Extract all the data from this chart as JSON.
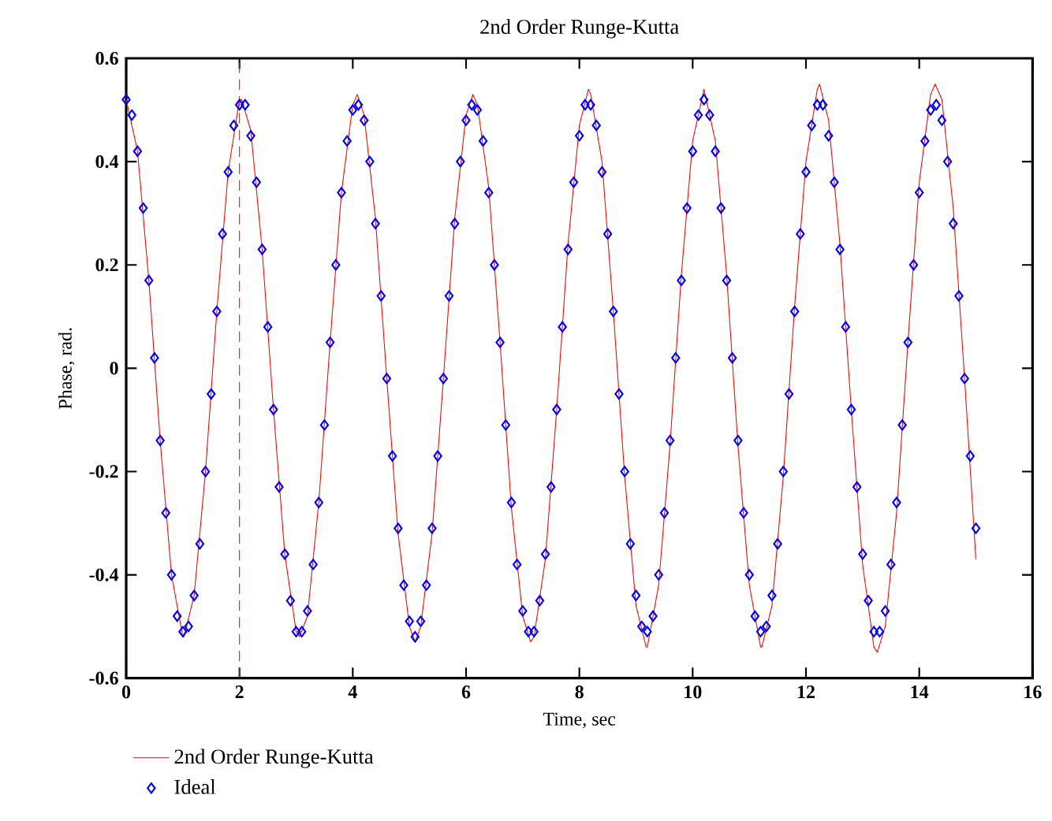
{
  "chart_data": {
    "type": "line",
    "title": "2nd Order Runge-Kutta",
    "xlabel": "Time, sec",
    "ylabel": "Phase, rad.",
    "xlim": [
      0,
      16
    ],
    "xticks": [
      0,
      2,
      4,
      6,
      8,
      10,
      12,
      14,
      16
    ],
    "ylim": [
      -0.6,
      0.6
    ],
    "yticks": [
      -0.6,
      -0.4,
      -0.2,
      0,
      0.2,
      0.4,
      0.6
    ],
    "grid": false,
    "legend": "bottom",
    "ref_lines": [
      {
        "axis": "x",
        "value": 2,
        "color": "#ff0000",
        "line_style": "dashed"
      }
    ],
    "series": [
      {
        "name": "2nd Order Runge-Kutta",
        "color": "#ff0000",
        "marker": "none",
        "line_style": "solid",
        "x": [
          0,
          0.2,
          0.4,
          0.6,
          0.8,
          1.0,
          1.02,
          1.2,
          1.4,
          1.6,
          1.8,
          2.0,
          2.04,
          2.2,
          2.4,
          2.6,
          2.8,
          3.0,
          3.06,
          3.2,
          3.4,
          3.6,
          3.8,
          4.0,
          4.08,
          4.2,
          4.4,
          4.6,
          4.8,
          5.0,
          5.1,
          5.2,
          5.4,
          5.6,
          5.8,
          6.0,
          6.12,
          6.2,
          6.4,
          6.6,
          6.8,
          7.0,
          7.14,
          7.2,
          7.4,
          7.6,
          7.8,
          8.0,
          8.16,
          8.2,
          8.4,
          8.6,
          8.8,
          9.0,
          9.18,
          9.2,
          9.4,
          9.6,
          9.8,
          10.0,
          10.2,
          10.4,
          10.6,
          10.8,
          11.0,
          11.2,
          11.22,
          11.4,
          11.6,
          11.8,
          12.0,
          12.2,
          12.24,
          12.4,
          12.6,
          12.8,
          13.0,
          13.2,
          13.26,
          13.4,
          13.6,
          13.8,
          14.0,
          14.2,
          14.28,
          14.4,
          14.6,
          14.8,
          15.0
        ],
        "values": [
          0.52,
          0.42,
          0.17,
          -0.14,
          -0.4,
          -0.52,
          -0.52,
          -0.44,
          -0.2,
          0.11,
          0.38,
          0.52,
          0.52,
          0.46,
          0.23,
          -0.08,
          -0.36,
          -0.51,
          -0.52,
          -0.48,
          -0.26,
          0.05,
          0.34,
          0.51,
          0.53,
          0.49,
          0.29,
          -0.02,
          -0.32,
          -0.5,
          -0.53,
          -0.5,
          -0.32,
          -0.02,
          0.29,
          0.49,
          0.53,
          0.51,
          0.35,
          0.05,
          -0.27,
          -0.48,
          -0.53,
          -0.52,
          -0.37,
          -0.08,
          0.24,
          0.47,
          0.54,
          0.53,
          0.4,
          0.11,
          -0.21,
          -0.46,
          -0.54,
          -0.54,
          -0.42,
          -0.15,
          0.18,
          0.44,
          0.54,
          0.44,
          0.18,
          -0.15,
          -0.42,
          -0.54,
          -0.54,
          -0.46,
          -0.21,
          0.12,
          0.4,
          0.54,
          0.55,
          0.48,
          0.24,
          -0.08,
          -0.38,
          -0.54,
          -0.55,
          -0.5,
          -0.28,
          0.05,
          0.36,
          0.53,
          0.55,
          0.52,
          0.31,
          -0.02,
          -0.37
        ]
      },
      {
        "name": "Ideal",
        "type": "scatter",
        "color": "#0000ff",
        "marker": "diamond",
        "x": [
          0,
          0.1,
          0.2,
          0.3,
          0.4,
          0.5,
          0.6,
          0.7,
          0.8,
          0.9,
          1.0,
          1.1,
          1.2,
          1.3,
          1.4,
          1.5,
          1.6,
          1.7,
          1.8,
          1.9,
          2.0,
          2.1,
          2.2,
          2.3,
          2.4,
          2.5,
          2.6,
          2.7,
          2.8,
          2.9,
          3.0,
          3.1,
          3.2,
          3.3,
          3.4,
          3.5,
          3.6,
          3.7,
          3.8,
          3.9,
          4.0,
          4.1,
          4.2,
          4.3,
          4.4,
          4.5,
          4.6,
          4.7,
          4.8,
          4.9,
          5.0,
          5.1,
          5.2,
          5.3,
          5.4,
          5.5,
          5.6,
          5.7,
          5.8,
          5.9,
          6.0,
          6.1,
          6.2,
          6.3,
          6.4,
          6.5,
          6.6,
          6.7,
          6.8,
          6.9,
          7.0,
          7.1,
          7.2,
          7.3,
          7.4,
          7.5,
          7.6,
          7.7,
          7.8,
          7.9,
          8.0,
          8.1,
          8.2,
          8.3,
          8.4,
          8.5,
          8.6,
          8.7,
          8.8,
          8.9,
          9.0,
          9.1,
          9.2,
          9.3,
          9.4,
          9.5,
          9.6,
          9.7,
          9.8,
          9.9,
          10.0,
          10.1,
          10.2,
          10.3,
          10.4,
          10.5,
          10.6,
          10.7,
          10.8,
          10.9,
          11.0,
          11.1,
          11.2,
          11.3,
          11.4,
          11.5,
          11.6,
          11.7,
          11.8,
          11.9,
          12.0,
          12.1,
          12.2,
          12.3,
          12.4,
          12.5,
          12.6,
          12.7,
          12.8,
          12.9,
          13.0,
          13.1,
          13.2,
          13.3,
          13.4,
          13.5,
          13.6,
          13.7,
          13.8,
          13.9,
          14.0,
          14.1,
          14.2,
          14.3,
          14.4,
          14.5,
          14.6,
          14.7,
          14.8,
          14.9,
          15.0
        ],
        "values": [
          0.52,
          0.49,
          0.42,
          0.31,
          0.17,
          0.02,
          -0.14,
          -0.28,
          -0.4,
          -0.48,
          -0.51,
          -0.5,
          -0.44,
          -0.34,
          -0.2,
          -0.05,
          0.11,
          0.26,
          0.38,
          0.47,
          0.51,
          0.51,
          0.45,
          0.36,
          0.23,
          0.08,
          -0.08,
          -0.23,
          -0.36,
          -0.45,
          -0.51,
          -0.51,
          -0.47,
          -0.38,
          -0.26,
          -0.11,
          0.05,
          0.2,
          0.34,
          0.44,
          0.5,
          0.51,
          0.48,
          0.4,
          0.28,
          0.14,
          -0.02,
          -0.17,
          -0.31,
          -0.42,
          -0.49,
          -0.52,
          -0.49,
          -0.42,
          -0.31,
          -0.17,
          -0.02,
          0.14,
          0.28,
          0.4,
          0.48,
          0.51,
          0.5,
          0.44,
          0.34,
          0.2,
          0.05,
          -0.11,
          -0.26,
          -0.38,
          -0.47,
          -0.51,
          -0.51,
          -0.45,
          -0.36,
          -0.23,
          -0.08,
          0.08,
          0.23,
          0.36,
          0.45,
          0.51,
          0.51,
          0.47,
          0.38,
          0.26,
          0.11,
          -0.05,
          -0.2,
          -0.34,
          -0.44,
          -0.5,
          -0.51,
          -0.48,
          -0.4,
          -0.28,
          -0.14,
          0.02,
          0.17,
          0.31,
          0.42,
          0.49,
          0.52,
          0.49,
          0.42,
          0.31,
          0.17,
          0.02,
          -0.14,
          -0.28,
          -0.4,
          -0.48,
          -0.51,
          -0.5,
          -0.44,
          -0.34,
          -0.2,
          -0.05,
          0.11,
          0.26,
          0.38,
          0.47,
          0.51,
          0.51,
          0.45,
          0.36,
          0.23,
          0.08,
          -0.08,
          -0.23,
          -0.36,
          -0.45,
          -0.51,
          -0.51,
          -0.47,
          -0.38,
          -0.26,
          -0.11,
          0.05,
          0.2,
          0.34,
          0.44,
          0.5,
          0.51,
          0.48,
          0.4,
          0.28,
          0.14,
          -0.02,
          -0.17,
          -0.31
        ]
      }
    ]
  }
}
